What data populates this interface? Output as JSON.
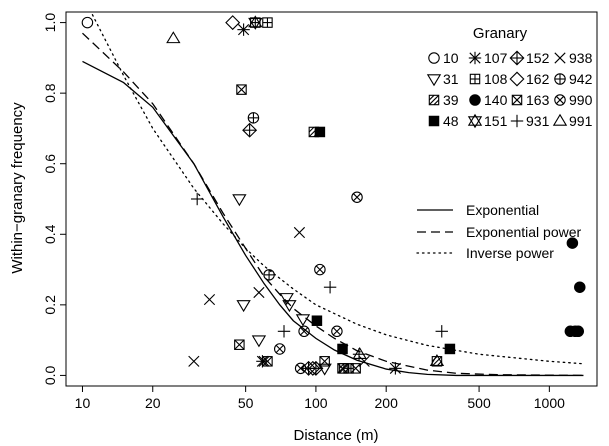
{
  "chart_data": {
    "type": "scatter",
    "xlabel": "Distance (m)",
    "ylabel": "Within−granary frequency",
    "x_scale": "log",
    "xlim": [
      8.5,
      1600
    ],
    "ylim": [
      -0.03,
      1.03
    ],
    "x_ticks": [
      10,
      20,
      50,
      100,
      200,
      500,
      1000
    ],
    "x_tick_labels": [
      "10",
      "20",
      "50",
      "100",
      "200",
      "500",
      "1000"
    ],
    "y_ticks": [
      0.0,
      0.2,
      0.4,
      0.6,
      0.8,
      1.0
    ],
    "y_tick_labels": [
      "0.0",
      "0.2",
      "0.4",
      "0.6",
      "0.8",
      "1.0"
    ],
    "grid": false,
    "legend_title": "Granary",
    "legend_placement": "top-right",
    "series": [
      {
        "name": "10",
        "marker": "circle",
        "points": [
          [
            10.5,
            1.0
          ]
        ]
      },
      {
        "name": "31",
        "marker": "triangle-down",
        "points": [
          [
            47,
            0.5
          ],
          [
            49,
            0.2
          ],
          [
            57,
            0.1
          ],
          [
            75,
            0.22
          ],
          [
            77,
            0.2
          ],
          [
            88,
            0.16
          ],
          [
            109,
            0.02
          ]
        ]
      },
      {
        "name": "39",
        "marker": "square-diag",
        "points": [
          [
            98,
            0.69
          ],
          [
            330,
            0.04
          ],
          [
            132,
            0.02
          ]
        ]
      },
      {
        "name": "48",
        "marker": "square-filled",
        "points": [
          [
            104,
            0.69
          ],
          [
            101,
            0.155
          ],
          [
            130,
            0.075
          ],
          [
            375,
            0.075
          ]
        ]
      },
      {
        "name": "107",
        "marker": "asterisk",
        "points": [
          [
            49,
            0.98
          ],
          [
            59,
            0.04
          ],
          [
            219,
            0.02
          ]
        ]
      },
      {
        "name": "108",
        "marker": "square-plus",
        "points": [
          [
            55,
            1.0
          ],
          [
            62,
            1.0
          ],
          [
            138,
            0.02
          ]
        ]
      },
      {
        "name": "140",
        "marker": "circle-filled",
        "points": [
          [
            1255,
            0.375
          ],
          [
            1350,
            0.25
          ],
          [
            1230,
            0.125
          ],
          [
            1290,
            0.125
          ],
          [
            1330,
            0.125
          ]
        ]
      },
      {
        "name": "151",
        "marker": "star-of-david",
        "points": [
          [
            55,
            1.0
          ]
        ]
      },
      {
        "name": "152",
        "marker": "diamond-plus",
        "points": [
          [
            52,
            0.695
          ],
          [
            93,
            0.02
          ],
          [
            100,
            0.02
          ]
        ]
      },
      {
        "name": "162",
        "marker": "diamond",
        "points": [
          [
            44,
            1.0
          ],
          [
            97,
            0.02
          ]
        ]
      },
      {
        "name": "163",
        "marker": "square-x",
        "points": [
          [
            48,
            0.81
          ],
          [
            47,
            0.087
          ],
          [
            62,
            0.04
          ],
          [
            109,
            0.04
          ],
          [
            130,
            0.02
          ],
          [
            148,
            0.02
          ]
        ]
      },
      {
        "name": "931",
        "marker": "plus",
        "points": [
          [
            31,
            0.5
          ],
          [
            73,
            0.125
          ],
          [
            115,
            0.25
          ],
          [
            346,
            0.125
          ],
          [
            153,
            0.06
          ]
        ]
      },
      {
        "name": "938",
        "marker": "cross",
        "points": [
          [
            35,
            0.215
          ],
          [
            57,
            0.235
          ],
          [
            30,
            0.04
          ],
          [
            85,
            0.405
          ],
          [
            60,
            0.04
          ],
          [
            161,
            0.04
          ]
        ]
      },
      {
        "name": "942",
        "marker": "circle-plus",
        "points": [
          [
            54,
            0.73
          ],
          [
            63,
            0.285
          ]
        ]
      },
      {
        "name": "990",
        "marker": "circle-x",
        "points": [
          [
            150,
            0.505
          ],
          [
            104,
            0.3
          ],
          [
            89,
            0.125
          ],
          [
            70,
            0.075
          ],
          [
            123,
            0.125
          ],
          [
            86,
            0.02
          ]
        ]
      },
      {
        "name": "991",
        "marker": "triangle-up",
        "points": [
          [
            24.5,
            0.955
          ],
          [
            154,
            0.06
          ],
          [
            330,
            0.04
          ]
        ]
      }
    ],
    "fitted_curves": [
      {
        "name": "Exponential",
        "line_style": "solid",
        "points": [
          [
            10,
            0.89
          ],
          [
            15,
            0.83
          ],
          [
            20,
            0.76
          ],
          [
            30,
            0.6
          ],
          [
            40,
            0.45
          ],
          [
            50,
            0.34
          ],
          [
            60,
            0.26
          ],
          [
            70,
            0.2
          ],
          [
            80,
            0.155
          ],
          [
            100,
            0.105
          ],
          [
            120,
            0.072
          ],
          [
            150,
            0.043
          ],
          [
            200,
            0.018
          ],
          [
            250,
            0.008
          ],
          [
            300,
            0.003
          ],
          [
            400,
            0.0
          ],
          [
            1400,
            0.0
          ]
        ]
      },
      {
        "name": "Exponential power",
        "line_style": "dashed",
        "points": [
          [
            10,
            0.97
          ],
          [
            15,
            0.86
          ],
          [
            20,
            0.77
          ],
          [
            30,
            0.6
          ],
          [
            40,
            0.46
          ],
          [
            50,
            0.36
          ],
          [
            60,
            0.28
          ],
          [
            70,
            0.23
          ],
          [
            80,
            0.19
          ],
          [
            100,
            0.14
          ],
          [
            120,
            0.105
          ],
          [
            150,
            0.07
          ],
          [
            200,
            0.04
          ],
          [
            300,
            0.015
          ],
          [
            400,
            0.006
          ],
          [
            600,
            0.002
          ],
          [
            1400,
            0.0
          ]
        ]
      },
      {
        "name": "Inverse power",
        "line_style": "dotted",
        "points": [
          [
            10.5,
            1.05
          ],
          [
            15,
            0.85
          ],
          [
            20,
            0.7
          ],
          [
            30,
            0.53
          ],
          [
            40,
            0.43
          ],
          [
            50,
            0.36
          ],
          [
            60,
            0.31
          ],
          [
            80,
            0.245
          ],
          [
            100,
            0.2
          ],
          [
            150,
            0.145
          ],
          [
            200,
            0.115
          ],
          [
            300,
            0.085
          ],
          [
            500,
            0.06
          ],
          [
            1000,
            0.04
          ],
          [
            1400,
            0.033
          ]
        ]
      }
    ]
  }
}
